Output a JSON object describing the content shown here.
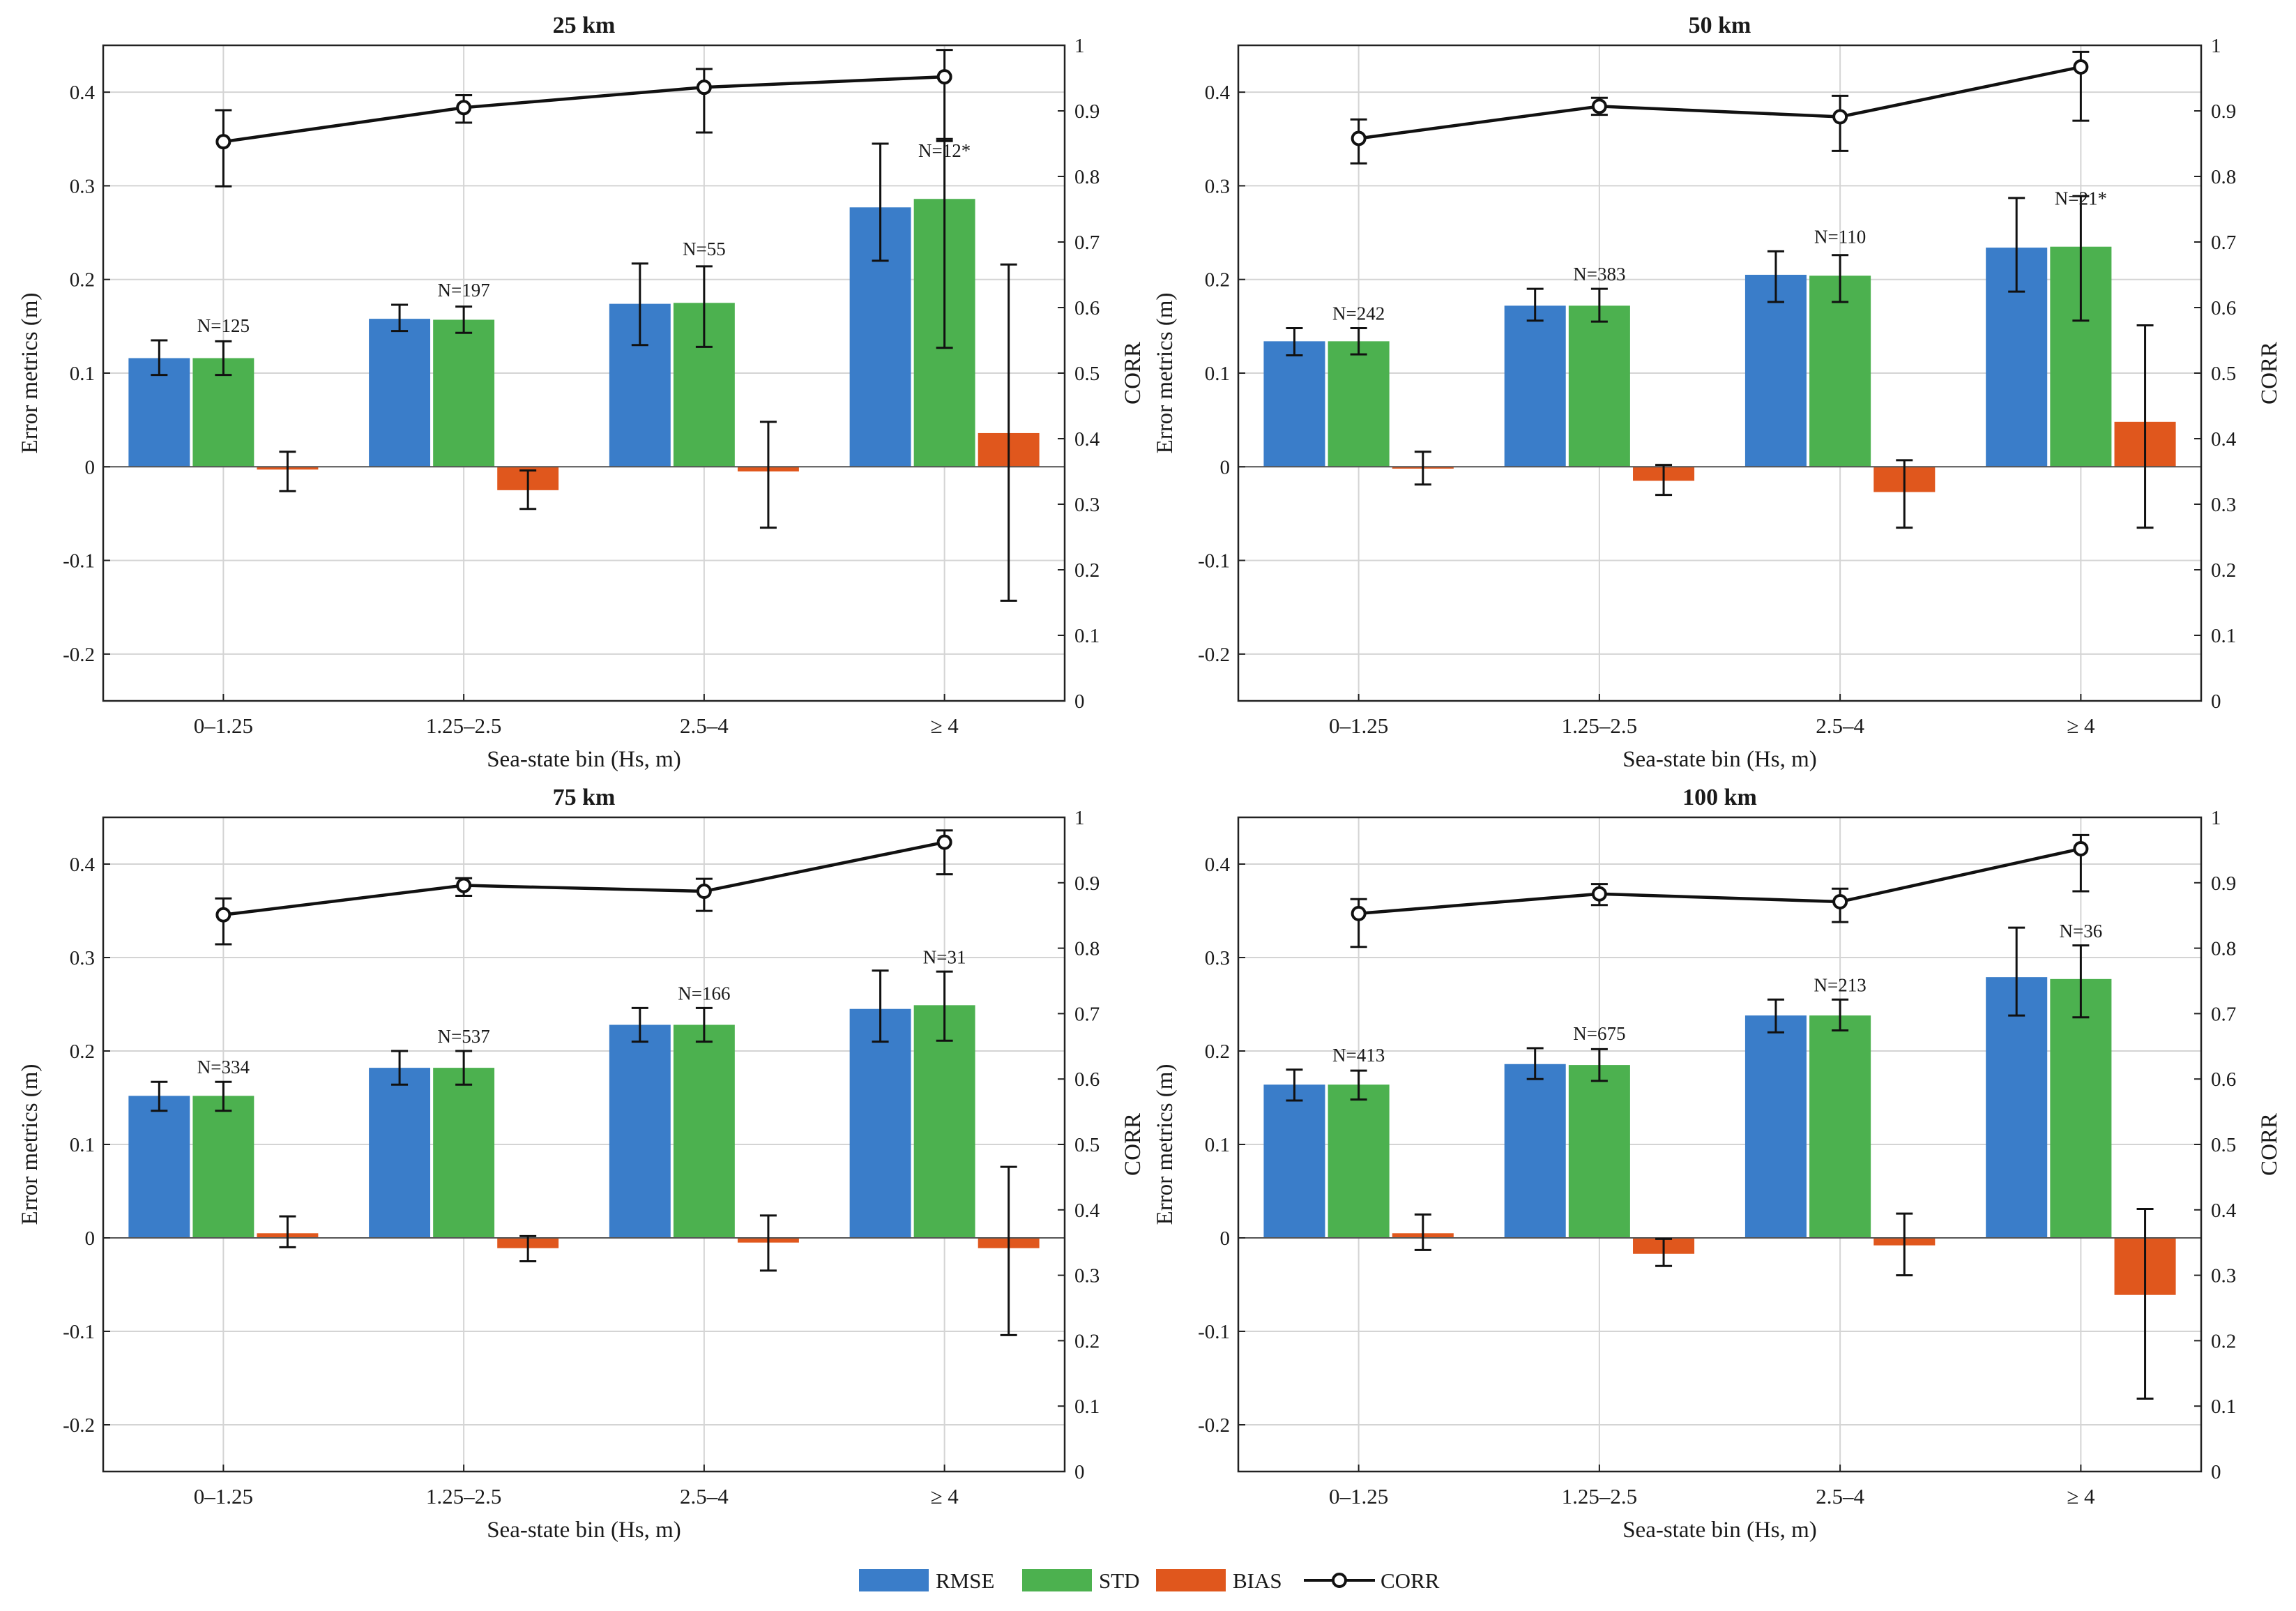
{
  "colors": {
    "rmse": "#3a7dc9",
    "std": "#4cb14f",
    "bias": "#e0571d",
    "corr": "#111111",
    "grid": "#d4d4d4",
    "axis": "#222222"
  },
  "legend": {
    "rmse": "RMSE",
    "std": "STD",
    "bias": "BIAS",
    "corr": "CORR"
  },
  "chart_data": [
    {
      "type": "bar",
      "title": "25 km",
      "xlabel": "Sea-state bin (Hs, m)",
      "ylabel": "Error metrics (m)",
      "y2label": "CORR",
      "ylim": [
        -0.25,
        0.45
      ],
      "y2lim": [
        0,
        1
      ],
      "yticks": [
        "-0.2",
        "-0.1",
        "0",
        "0.1",
        "0.2",
        "0.3",
        "0.4"
      ],
      "y2ticks": [
        "0",
        "0.1",
        "0.2",
        "0.3",
        "0.4",
        "0.5",
        "0.6",
        "0.7",
        "0.8",
        "0.9",
        "1"
      ],
      "categories": [
        "0–1.25",
        "1.25–2.5",
        "2.5–4",
        "≥ 4"
      ],
      "n_labels": [
        "N=125",
        "N=197",
        "N=55",
        "N=12*"
      ],
      "series": [
        {
          "name": "RMSE",
          "values": [
            0.116,
            0.158,
            0.174,
            0.277
          ],
          "err_low": [
            0.098,
            0.145,
            0.13,
            0.22
          ],
          "err_high": [
            0.135,
            0.173,
            0.217,
            0.345
          ]
        },
        {
          "name": "STD",
          "values": [
            0.116,
            0.157,
            0.175,
            0.286
          ],
          "err_low": [
            0.098,
            0.143,
            0.128,
            0.127
          ],
          "err_high": [
            0.134,
            0.171,
            0.214,
            0.35
          ]
        },
        {
          "name": "BIAS",
          "values": [
            -0.003,
            -0.025,
            -0.005,
            0.036
          ],
          "err_low": [
            -0.026,
            -0.045,
            -0.065,
            -0.143
          ],
          "err_high": [
            0.016,
            -0.004,
            0.048,
            0.216
          ]
        }
      ],
      "corr": {
        "values": [
          0.853,
          0.905,
          0.936,
          0.952
        ],
        "err_low": [
          0.785,
          0.882,
          0.867,
          0.854
        ],
        "err_high": [
          0.901,
          0.924,
          0.964,
          0.993
        ]
      }
    },
    {
      "type": "bar",
      "title": "50 km",
      "xlabel": "Sea-state bin (Hs, m)",
      "ylabel": "Error metrics (m)",
      "y2label": "CORR",
      "ylim": [
        -0.25,
        0.45
      ],
      "y2lim": [
        0,
        1
      ],
      "yticks": [
        "-0.2",
        "-0.1",
        "0",
        "0.1",
        "0.2",
        "0.3",
        "0.4"
      ],
      "y2ticks": [
        "0",
        "0.1",
        "0.2",
        "0.3",
        "0.4",
        "0.5",
        "0.6",
        "0.7",
        "0.8",
        "0.9",
        "1"
      ],
      "categories": [
        "0–1.25",
        "1.25–2.5",
        "2.5–4",
        "≥ 4"
      ],
      "n_labels": [
        "N=242",
        "N=383",
        "N=110",
        "N=21*"
      ],
      "series": [
        {
          "name": "RMSE",
          "values": [
            0.134,
            0.172,
            0.205,
            0.234
          ],
          "err_low": [
            0.119,
            0.156,
            0.176,
            0.187
          ],
          "err_high": [
            0.148,
            0.19,
            0.23,
            0.287
          ]
        },
        {
          "name": "STD",
          "values": [
            0.134,
            0.172,
            0.204,
            0.235
          ],
          "err_low": [
            0.12,
            0.155,
            0.176,
            0.156
          ],
          "err_high": [
            0.148,
            0.19,
            0.226,
            0.289
          ]
        },
        {
          "name": "BIAS",
          "values": [
            -0.002,
            -0.015,
            -0.027,
            0.048
          ],
          "err_low": [
            -0.019,
            -0.03,
            -0.065,
            -0.065
          ],
          "err_high": [
            0.016,
            0.002,
            0.007,
            0.151
          ]
        }
      ],
      "corr": {
        "values": [
          0.858,
          0.907,
          0.891,
          0.967
        ],
        "err_low": [
          0.82,
          0.894,
          0.839,
          0.885
        ],
        "err_high": [
          0.887,
          0.92,
          0.923,
          0.99
        ]
      }
    },
    {
      "type": "bar",
      "title": "75 km",
      "xlabel": "Sea-state bin (Hs, m)",
      "ylabel": "Error metrics (m)",
      "y2label": "CORR",
      "ylim": [
        -0.25,
        0.45
      ],
      "y2lim": [
        0,
        1
      ],
      "yticks": [
        "-0.2",
        "-0.1",
        "0",
        "0.1",
        "0.2",
        "0.3",
        "0.4"
      ],
      "y2ticks": [
        "0",
        "0.1",
        "0.2",
        "0.3",
        "0.4",
        "0.5",
        "0.6",
        "0.7",
        "0.8",
        "0.9",
        "1"
      ],
      "categories": [
        "0–1.25",
        "1.25–2.5",
        "2.5–4",
        "≥ 4"
      ],
      "n_labels": [
        "N=334",
        "N=537",
        "N=166",
        "N=31"
      ],
      "series": [
        {
          "name": "RMSE",
          "values": [
            0.152,
            0.182,
            0.228,
            0.245
          ],
          "err_low": [
            0.136,
            0.164,
            0.21,
            0.21
          ],
          "err_high": [
            0.167,
            0.2,
            0.246,
            0.286
          ]
        },
        {
          "name": "STD",
          "values": [
            0.152,
            0.182,
            0.228,
            0.249
          ],
          "err_low": [
            0.136,
            0.164,
            0.21,
            0.211
          ],
          "err_high": [
            0.167,
            0.2,
            0.246,
            0.285
          ]
        },
        {
          "name": "BIAS",
          "values": [
            0.005,
            -0.011,
            -0.005,
            -0.011
          ],
          "err_low": [
            -0.01,
            -0.025,
            -0.035,
            -0.104
          ],
          "err_high": [
            0.023,
            0.002,
            0.024,
            0.076
          ]
        }
      ],
      "corr": {
        "values": [
          0.851,
          0.896,
          0.887,
          0.962
        ],
        "err_low": [
          0.806,
          0.88,
          0.857,
          0.913
        ],
        "err_high": [
          0.876,
          0.907,
          0.906,
          0.98
        ]
      }
    },
    {
      "type": "bar",
      "title": "100 km",
      "xlabel": "Sea-state bin (Hs, m)",
      "ylabel": "Error metrics (m)",
      "y2label": "CORR",
      "ylim": [
        -0.25,
        0.45
      ],
      "y2lim": [
        0,
        1
      ],
      "yticks": [
        "-0.2",
        "-0.1",
        "0",
        "0.1",
        "0.2",
        "0.3",
        "0.4"
      ],
      "y2ticks": [
        "0",
        "0.1",
        "0.2",
        "0.3",
        "0.4",
        "0.5",
        "0.6",
        "0.7",
        "0.8",
        "0.9",
        "1"
      ],
      "categories": [
        "0–1.25",
        "1.25–2.5",
        "2.5–4",
        "≥ 4"
      ],
      "n_labels": [
        "N=413",
        "N=675",
        "N=213",
        "N=36"
      ],
      "series": [
        {
          "name": "RMSE",
          "values": [
            0.164,
            0.186,
            0.238,
            0.279
          ],
          "err_low": [
            0.147,
            0.17,
            0.22,
            0.238
          ],
          "err_high": [
            0.18,
            0.203,
            0.255,
            0.332
          ]
        },
        {
          "name": "STD",
          "values": [
            0.164,
            0.185,
            0.238,
            0.277
          ],
          "err_low": [
            0.148,
            0.168,
            0.222,
            0.236
          ],
          "err_high": [
            0.179,
            0.202,
            0.255,
            0.313
          ]
        },
        {
          "name": "BIAS",
          "values": [
            0.005,
            -0.017,
            -0.008,
            -0.061
          ],
          "err_low": [
            -0.013,
            -0.03,
            -0.04,
            -0.172
          ],
          "err_high": [
            0.025,
            -0.001,
            0.026,
            0.031
          ]
        }
      ],
      "corr": {
        "values": [
          0.853,
          0.883,
          0.871,
          0.952
        ],
        "err_low": [
          0.802,
          0.866,
          0.84,
          0.887
        ],
        "err_high": [
          0.875,
          0.898,
          0.891,
          0.973
        ]
      }
    }
  ]
}
